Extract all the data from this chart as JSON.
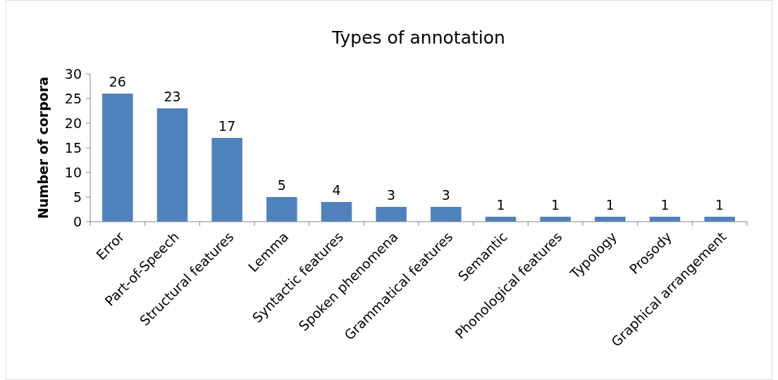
{
  "chart_data": {
    "type": "bar",
    "title": "Types of annotation",
    "ylabel": "Number of corpora",
    "categories": [
      "Error",
      "Part-of-Speech",
      "Structural features",
      "Lemma",
      "Syntactic features",
      "Spoken phenomena",
      "Grammatical features",
      "Semantic",
      "Phonological features",
      "Typology",
      "Prosody",
      "Graphical arrangement"
    ],
    "values": [
      26,
      23,
      17,
      5,
      4,
      3,
      3,
      1,
      1,
      1,
      1,
      1
    ],
    "color": "#4f81bd",
    "ylim": [
      0,
      30
    ],
    "yticks": [
      0,
      5,
      10,
      15,
      20,
      25,
      30
    ],
    "grid": false,
    "data_labels": true
  }
}
